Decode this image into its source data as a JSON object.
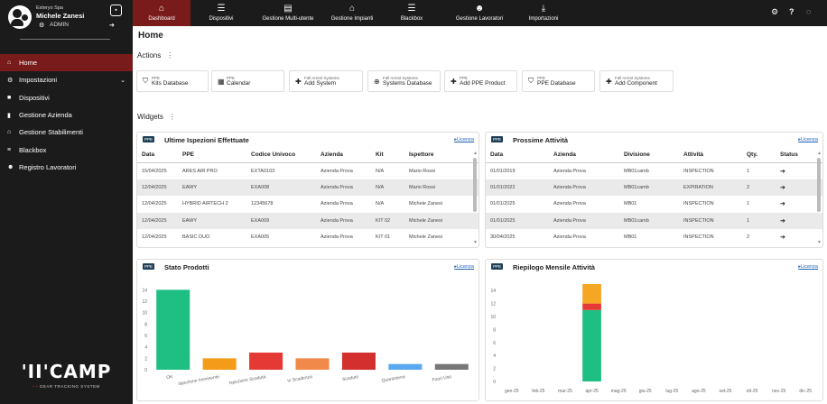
{
  "sidebar": {
    "company": "Exteryo Spa",
    "user": "Michele Zanesi",
    "role": "ADMIN",
    "items": [
      {
        "label": "Home",
        "icon": "home-icon",
        "glyph": "⌂"
      },
      {
        "label": "Impostazioni",
        "icon": "gears-icon",
        "glyph": "⚙"
      },
      {
        "label": "Dispositivi",
        "icon": "square-icon",
        "glyph": "■"
      },
      {
        "label": "Gestione Azienda",
        "icon": "building-icon",
        "glyph": "▮"
      },
      {
        "label": "Gestione Stabilimenti",
        "icon": "bank-icon",
        "glyph": "⌂"
      },
      {
        "label": "Blackbox",
        "icon": "list-icon",
        "glyph": "≡"
      },
      {
        "label": "Registro Lavoratori",
        "icon": "users-icon",
        "glyph": "☻"
      }
    ],
    "brand": "'II'CAMP",
    "brand_sub": "GEAR TRACKING SYSTEM"
  },
  "topbar": {
    "items": [
      {
        "label": "Dashboard",
        "icon": "home-icon",
        "glyph": "⌂"
      },
      {
        "label": "Dispositivi",
        "icon": "list-icon",
        "glyph": "☰"
      },
      {
        "label": "Gestione Multi-utente",
        "icon": "document-icon",
        "glyph": "▤"
      },
      {
        "label": "Gestione Impianti",
        "icon": "bank-icon",
        "glyph": "⌂"
      },
      {
        "label": "Blackbox",
        "icon": "list-icon",
        "glyph": "☰"
      },
      {
        "label": "Gestione Lavoratori",
        "icon": "users-icon",
        "glyph": "☻"
      },
      {
        "label": "Importazioni",
        "icon": "download-icon",
        "glyph": "⤓"
      }
    ]
  },
  "main": {
    "title": "Home",
    "actions_label": "Actions",
    "widgets_label": "Widgets",
    "actions": [
      {
        "small": "PPE",
        "label": "Kits Database",
        "icon": "shield-icon",
        "glyph": "⛉"
      },
      {
        "small": "PPE",
        "label": "Calendar",
        "icon": "calendar-icon",
        "glyph": "▦"
      },
      {
        "small": "Fall Arrest Systems",
        "label": "Add System",
        "icon": "plus-icon",
        "glyph": "✚"
      },
      {
        "small": "Fall Arrest Systems",
        "label": "Systems Database",
        "icon": "lifebuoy-icon",
        "glyph": "⊕"
      },
      {
        "small": "PPE",
        "label": "Add PPE Product",
        "icon": "plus-icon",
        "glyph": "✚"
      },
      {
        "small": "PPE",
        "label": "PPE Database",
        "icon": "shield-icon",
        "glyph": "⛉"
      },
      {
        "small": "Fall Arrest Systems",
        "label": "Add Component",
        "icon": "plus-icon",
        "glyph": "✚"
      }
    ]
  },
  "badge": "PPE",
  "link": "Licenza",
  "inspections": {
    "title": "Ultime Ispezioni Effettuate",
    "columns": [
      "Data",
      "PPE",
      "Codice Univoco",
      "Azienda",
      "Kit",
      "Ispettore"
    ],
    "rows": [
      [
        "15/04/2025",
        "ARES AIR PRO",
        "EXTA0103",
        "Azienda Prova",
        "N/A",
        "Mario Rossi"
      ],
      [
        "12/04/2025",
        "EAWY",
        "EXA008",
        "Azienda Prova",
        "N/A",
        "Mario Rossi"
      ],
      [
        "12/04/2025",
        "HYBRID AIRTECH 2",
        "12345678",
        "Azienda Prova",
        "N/A",
        "Michele Zanesi"
      ],
      [
        "12/04/2025",
        "EAWY",
        "EXA009",
        "Azienda Prova",
        "KIT 02",
        "Michele Zanesi"
      ],
      [
        "12/04/2025",
        "BASIC DUO",
        "EXA005",
        "Azienda Prova",
        "KIT 01",
        "Michele Zanesi"
      ]
    ]
  },
  "activities": {
    "title": "Prossime Attività",
    "columns": [
      "Data",
      "Azienda",
      "Divisione",
      "Attività",
      "Qty.",
      "Status"
    ],
    "rows": [
      [
        "01/01/2019",
        "Azienda Prova",
        "MB01camb",
        "INSPECTION",
        "1",
        "➔"
      ],
      [
        "01/01/2022",
        "Azienda Prova",
        "MB01camb",
        "EXPIRATION",
        "2",
        "➔"
      ],
      [
        "01/01/2025",
        "Azienda Prova",
        "MB01",
        "INSPECTION",
        "1",
        "➔"
      ],
      [
        "01/01/2025",
        "Azienda Prova",
        "MB01camb",
        "INSPECTION",
        "1",
        "➔"
      ],
      [
        "30/04/2025",
        "Azienda Prova",
        "MB01",
        "INSPECTION",
        "2",
        "➔"
      ]
    ]
  },
  "chart_data": [
    {
      "type": "bar",
      "title": "Stato Prodotti",
      "categories": [
        "OK",
        "Ispezione Imminente",
        "Ispezione Scaduta",
        "In Scadenza",
        "Scaduto",
        "Quarantena",
        "Fuori Uso"
      ],
      "values": [
        14,
        2,
        3,
        2,
        3,
        1,
        1
      ],
      "colors": [
        "#1fbf83",
        "#f59b1a",
        "#e53935",
        "#f0894a",
        "#d32f2f",
        "#5aa9f0",
        "#777777"
      ],
      "yticks": [
        0,
        2,
        4,
        6,
        8,
        10,
        12,
        14
      ],
      "ylim": [
        0,
        15
      ]
    },
    {
      "type": "bar",
      "title": "Riepilogo Mensile Attività",
      "categories": [
        "gen-25",
        "feb-25",
        "mar-25",
        "apr-25",
        "mag-25",
        "giu-25",
        "lug-25",
        "ago-25",
        "set-25",
        "ott-25",
        "nov-25",
        "dic-25"
      ],
      "series": [
        {
          "values": [
            0,
            0,
            0,
            11,
            0,
            0,
            0,
            0,
            0,
            0,
            0,
            0
          ],
          "color": "#1fbf83"
        },
        {
          "values": [
            0,
            0,
            0,
            1,
            0,
            0,
            0,
            0,
            0,
            0,
            0,
            0
          ],
          "color": "#e53935"
        },
        {
          "values": [
            0,
            0,
            0,
            3,
            0,
            0,
            0,
            0,
            0,
            0,
            0,
            0
          ],
          "color": "#f5a623"
        }
      ],
      "yticks": [
        0,
        2,
        4,
        6,
        8,
        10,
        12,
        14
      ],
      "ylim": [
        0,
        15
      ],
      "stacked": true
    }
  ]
}
